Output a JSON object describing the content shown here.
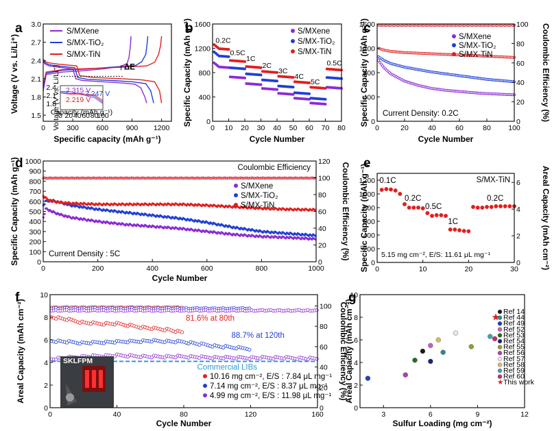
{
  "colors": {
    "mxene": "#8c2ad6",
    "tio2": "#1f3fd8",
    "tin": "#e01e1e",
    "f_1016": "#e01e1e",
    "f_714": "#1f3fd8",
    "f_499": "#8c2ad6",
    "commercial": "#2a9ad8"
  },
  "chart_data": [
    {
      "panel": "a",
      "type": "line",
      "xlabel": "Specific capacity (mAh g⁻¹)",
      "ylabel": "Voltage (V vs. Li/Li⁺)",
      "xlim": [
        0,
        1300
      ],
      "ylim": [
        1.4,
        3.0
      ],
      "xticks": [
        "0",
        "300",
        "600",
        "900",
        "1200"
      ],
      "yticks": [
        "1.5",
        "1.8",
        "2.1",
        "2.4",
        "2.7",
        "3.0"
      ],
      "series": [
        {
          "name": "S/MXene",
          "color_key": "mxene",
          "discharge": {
            "x": [
              0,
              20,
              60,
              150,
              300,
              330,
              400,
              600,
              800,
              930,
              990,
              1030,
              1050
            ],
            "y": [
              2.38,
              2.34,
              2.31,
              2.29,
              2.26,
              2.1,
              2.07,
              2.05,
              2.03,
              2.01,
              1.95,
              1.8,
              1.7
            ]
          },
          "charge": {
            "x": [
              0,
              30,
              200,
              400,
              600,
              780,
              850,
              870,
              885,
              890
            ],
            "y": [
              1.9,
              2.17,
              2.21,
              2.23,
              2.26,
              2.3,
              2.35,
              2.45,
              2.65,
              2.8
            ]
          }
        },
        {
          "name": "S/MX-TiO₂",
          "color_key": "tio2",
          "discharge": {
            "x": [
              0,
              20,
              60,
              150,
              320,
              350,
              450,
              700,
              900,
              1040,
              1090,
              1120
            ],
            "y": [
              2.4,
              2.36,
              2.33,
              2.31,
              2.28,
              2.12,
              2.09,
              2.07,
              2.05,
              2.02,
              1.9,
              1.7
            ]
          },
          "charge": {
            "x": [
              0,
              30,
              200,
              450,
              700,
              940,
              1000,
              1040,
              1055,
              1060
            ],
            "y": [
              1.95,
              2.19,
              2.24,
              2.26,
              2.29,
              2.32,
              2.38,
              2.5,
              2.7,
              2.8
            ]
          }
        },
        {
          "name": "S/MX-TiN",
          "color_key": "tin",
          "discharge": {
            "x": [
              0,
              20,
              60,
              150,
              340,
              370,
              500,
              800,
              1000,
              1130,
              1180,
              1200
            ],
            "y": [
              2.42,
              2.38,
              2.36,
              2.34,
              2.31,
              2.15,
              2.12,
              2.1,
              2.08,
              2.05,
              1.9,
              1.7
            ]
          },
          "charge": {
            "x": [
              0,
              30,
              200,
              500,
              800,
              1050,
              1130,
              1170,
              1190,
              1200
            ],
            "y": [
              2.0,
              2.21,
              2.25,
              2.27,
              2.29,
              2.31,
              2.37,
              2.5,
              2.65,
              2.8
            ]
          }
        }
      ],
      "annotations": [
        "ΔE"
      ],
      "inset": {
        "xlabel": "Capacity (mAh g⁻¹)",
        "ylabel": "Voltage (V vs. Li/Li⁺)",
        "labels": [
          "2.315 V",
          "2.247 V",
          "2.219 V"
        ],
        "xticks": [
          "0",
          "20",
          "40",
          "60",
          "80",
          "100"
        ],
        "yticks": [
          "1.8",
          "2.1",
          "2.4"
        ]
      }
    },
    {
      "panel": "b",
      "type": "scatter",
      "xlabel": "Cycle Number",
      "ylabel": "Specific Capacity (mAh g⁻¹)",
      "xlim": [
        0,
        80
      ],
      "ylim": [
        0,
        1600
      ],
      "xticks": [
        "0",
        "10",
        "20",
        "30",
        "40",
        "50",
        "60",
        "70",
        "80"
      ],
      "yticks": [
        "0",
        "400",
        "800",
        "1200",
        "1600"
      ],
      "rate_labels": [
        "0.2C",
        "0.5C",
        "1C",
        "2C",
        "3C",
        "4C",
        "5C",
        "0.5C"
      ],
      "series": [
        {
          "name": "S/MXene",
          "color_key": "mxene",
          "segment_values": [
            900,
            730,
            620,
            540,
            460,
            380,
            300,
            560
          ]
        },
        {
          "name": "S/MX-TiO₂",
          "color_key": "tio2",
          "segment_values": [
            1080,
            880,
            780,
            680,
            580,
            470,
            380,
            720
          ]
        },
        {
          "name": "S/MX-TiN",
          "color_key": "tin",
          "segment_values": [
            1200,
            1000,
            900,
            820,
            740,
            650,
            560,
            860
          ]
        }
      ]
    },
    {
      "panel": "c",
      "type": "scatter",
      "xlabel": "Cycle Number",
      "ylabel": "Specific Capacity (mAh g⁻¹)",
      "ylabel2": "Coulombic Efficiency (%)",
      "xlim": [
        0,
        100
      ],
      "ylim": [
        0,
        1600
      ],
      "y2lim": [
        0,
        100
      ],
      "xticks": [
        "0",
        "20",
        "40",
        "60",
        "80",
        "100"
      ],
      "yticks": [
        "0",
        "400",
        "800",
        "1200",
        "1600"
      ],
      "y2ticks": [
        "0",
        "20",
        "40",
        "60",
        "80",
        "100"
      ],
      "annotations": [
        "Current Density: 0.2C"
      ],
      "series": [
        {
          "name": "S/MXene",
          "color_key": "mxene",
          "x": [
            1,
            5,
            10,
            20,
            30,
            40,
            50,
            60,
            70,
            80,
            90,
            100
          ],
          "y": [
            1000,
            880,
            780,
            660,
            590,
            540,
            510,
            490,
            470,
            455,
            445,
            435
          ]
        },
        {
          "name": "S/MX-TiO₂",
          "color_key": "tio2",
          "x": [
            1,
            5,
            10,
            20,
            30,
            40,
            50,
            60,
            70,
            80,
            90,
            100
          ],
          "y": [
            1060,
            1000,
            950,
            890,
            850,
            810,
            780,
            750,
            720,
            690,
            670,
            650
          ]
        },
        {
          "name": "S/MX-TiN",
          "color_key": "tin",
          "x": [
            1,
            5,
            10,
            20,
            30,
            40,
            50,
            60,
            70,
            80,
            90,
            100
          ],
          "y": [
            1200,
            1170,
            1150,
            1130,
            1120,
            1110,
            1100,
            1090,
            1080,
            1070,
            1060,
            1050
          ]
        }
      ],
      "ce": {
        "value": 98.5
      }
    },
    {
      "panel": "d",
      "type": "scatter",
      "xlabel": "Cycle Number",
      "ylabel": "Specific Capacity (mAh g⁻¹)",
      "ylabel2": "Coulombic Efficiency (%)",
      "xlim": [
        0,
        1000
      ],
      "ylim": [
        0,
        1000
      ],
      "y2lim": [
        0,
        120
      ],
      "xticks": [
        "0",
        "200",
        "400",
        "600",
        "800",
        "1000"
      ],
      "yticks": [
        "0",
        "100",
        "200",
        "300",
        "400",
        "500",
        "600",
        "700",
        "800",
        "900",
        "1000"
      ],
      "y2ticks": [
        "0",
        "20",
        "40",
        "60",
        "80",
        "100",
        "120"
      ],
      "annotations": [
        "Coulombic Efficiency",
        "Current Density : 5C"
      ],
      "series": [
        {
          "name": "S/MXene",
          "color_key": "mxene",
          "x": [
            1,
            10,
            30,
            60,
            100,
            200,
            300,
            400,
            500,
            600,
            700,
            800,
            900,
            1000
          ],
          "y": [
            440,
            530,
            500,
            470,
            440,
            400,
            370,
            350,
            330,
            300,
            270,
            250,
            240,
            225
          ]
        },
        {
          "name": "S/MX-TiO₂",
          "color_key": "tio2",
          "x": [
            1,
            10,
            30,
            60,
            100,
            200,
            300,
            400,
            500,
            600,
            700,
            800,
            900,
            1000
          ],
          "y": [
            560,
            600,
            610,
            590,
            560,
            520,
            490,
            460,
            430,
            390,
            340,
            300,
            280,
            260
          ]
        },
        {
          "name": "S/MX-TiN",
          "color_key": "tin",
          "x": [
            1,
            10,
            30,
            60,
            100,
            200,
            300,
            400,
            500,
            600,
            700,
            800,
            900,
            1000
          ],
          "y": [
            650,
            630,
            600,
            590,
            580,
            570,
            570,
            570,
            570,
            560,
            545,
            530,
            520,
            515
          ]
        }
      ],
      "ce": {
        "value": 100
      }
    },
    {
      "panel": "e",
      "type": "scatter",
      "xlabel": "",
      "ylabel": "Specific Capacity (mAh g⁻¹)",
      "ylabel2": "Areal Capacity (mAh cm⁻²)",
      "xlim": [
        0,
        30
      ],
      "ylim": [
        0,
        1300
      ],
      "y2lim": [
        0,
        6.68
      ],
      "xticks": [
        "0",
        "10",
        "20",
        "30"
      ],
      "yticks": [
        "0",
        "200",
        "400",
        "600",
        "800",
        "1000",
        "1200"
      ],
      "y2ticks": [
        "0",
        "2",
        "4",
        "6"
      ],
      "title": "S/MX-TiN",
      "rate_labels": [
        "0.1C",
        "0.2C",
        "0.5C",
        "1C",
        "0.2C"
      ],
      "annotations": [
        "5.15 mg cm⁻², E/S: 11.61 μL mg⁻¹"
      ],
      "series": [
        {
          "name": "",
          "color_key": "tin",
          "x": [
            1,
            2,
            3,
            4,
            5,
            6,
            7,
            8,
            9,
            10,
            11,
            12,
            13,
            14,
            15,
            16,
            17,
            18,
            19,
            20,
            21,
            22,
            23,
            24,
            25,
            26,
            27,
            28,
            29,
            30
          ],
          "y": [
            1060,
            1070,
            1065,
            1050,
            1000,
            850,
            800,
            800,
            800,
            790,
            720,
            680,
            690,
            690,
            680,
            480,
            480,
            470,
            460,
            455,
            810,
            800,
            800,
            810,
            810,
            820,
            820,
            820,
            820,
            820
          ]
        }
      ]
    },
    {
      "panel": "f",
      "type": "scatter",
      "xlabel": "Cycle Number",
      "ylabel": "Areal Capacity (mAh cm⁻²)",
      "ylabel2": "Coulombic Efficiency (%)",
      "xlim": [
        0,
        160
      ],
      "ylim": [
        0,
        10
      ],
      "y2lim": [
        0,
        111.1
      ],
      "xticks": [
        "0",
        "40",
        "80",
        "120",
        "160"
      ],
      "yticks": [
        "0",
        "2",
        "4",
        "6",
        "8",
        "10"
      ],
      "y2ticks": [
        "0",
        "20",
        "40",
        "60",
        "80",
        "100"
      ],
      "annotations": [
        "81.6% at 80th",
        "88.7% at 120th",
        "Commercial LIBs",
        "SKLFPM"
      ],
      "commercial_level": 4.1,
      "series": [
        {
          "name": "10.16 mg cm⁻², E/S : 7.84 μL mg⁻¹",
          "color_key": "f_1016",
          "x": [
            1,
            10,
            20,
            30,
            40,
            50,
            60,
            70,
            80
          ],
          "y": [
            8.0,
            7.8,
            7.5,
            7.4,
            7.4,
            7.2,
            7.0,
            6.9,
            6.6
          ]
        },
        {
          "name": "7.14 mg cm⁻², E/S : 8.37 μL mg⁻¹",
          "color_key": "f_714",
          "x": [
            1,
            20,
            40,
            60,
            80,
            100,
            110,
            120
          ],
          "y": [
            5.9,
            5.7,
            5.8,
            5.9,
            5.8,
            5.4,
            5.3,
            5.2
          ]
        },
        {
          "name": "4.99 mg cm⁻², E/S : 11.98 μL mg⁻¹",
          "color_key": "f_499",
          "x": [
            1,
            20,
            40,
            60,
            80,
            100,
            120,
            140,
            160
          ],
          "y": [
            4.3,
            4.5,
            4.6,
            4.5,
            4.5,
            4.4,
            4.4,
            4.4,
            4.3
          ]
        }
      ],
      "ce": {
        "values": [
          99,
          98,
          96
        ]
      }
    },
    {
      "panel": "g",
      "type": "scatter",
      "xlabel": "Sulfur Loading (mg cm⁻²)",
      "ylabel": "Areal Capacity (mAh cm⁻²)",
      "xlim": [
        1.5,
        12
      ],
      "ylim": [
        0,
        10
      ],
      "xticks": [
        "3",
        "6",
        "9",
        "12"
      ],
      "yticks": [
        "0",
        "2",
        "4",
        "6",
        "8",
        "10"
      ],
      "series": [
        {
          "name": "Ref 14",
          "color": "#1a1a1a",
          "x": 5.5,
          "y": 5.0
        },
        {
          "name": "Ref 44",
          "color": "#2e8b8b",
          "x": 6.8,
          "y": 4.9
        },
        {
          "name": "Ref 49",
          "color": "#2040c0",
          "x": 2.0,
          "y": 2.6
        },
        {
          "name": "Ref 52",
          "color": "#c060c0",
          "x": 6.0,
          "y": 5.5
        },
        {
          "name": "Ref 53",
          "color": "#207020",
          "x": 5.0,
          "y": 4.2
        },
        {
          "name": "Ref 54",
          "color": "#202080",
          "x": 6.0,
          "y": 4.1
        },
        {
          "name": "Ref 55",
          "color": "#9a9a30",
          "x": 8.6,
          "y": 5.4
        },
        {
          "name": "Ref 56",
          "color": "#b040b0",
          "x": 4.4,
          "y": 2.9
        },
        {
          "name": "Ref 57",
          "color": "#f0e0f0",
          "x": 7.6,
          "y": 6.6
        },
        {
          "name": "Ref 58",
          "color": "#d0c060",
          "x": 6.5,
          "y": 6.0
        },
        {
          "name": "Ref 59",
          "color": "#40a0c0",
          "x": 9.8,
          "y": 6.3
        },
        {
          "name": "Ref 60",
          "color": "#c03070",
          "x": 10.1,
          "y": 6.1
        },
        {
          "name": "This work",
          "color": "#e01e1e",
          "x": 10.16,
          "y": 8.0,
          "marker": "star"
        }
      ]
    }
  ]
}
